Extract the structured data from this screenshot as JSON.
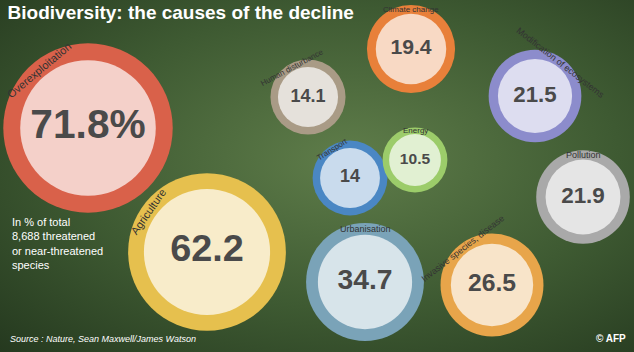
{
  "chart_data": {
    "type": "bubble",
    "title": "Biodiversity: the causes of the decline",
    "categories": [
      "Overexploitation",
      "Agriculture",
      "Human disturbance",
      "Climate change",
      "Transport",
      "Energy",
      "Modification of ecosystems",
      "Pollution",
      "Urbanisation",
      "Invasive species, disease"
    ],
    "values": [
      71.8,
      62.2,
      14.1,
      19.4,
      14,
      10.5,
      21.5,
      21.9,
      34.7,
      26.5
    ],
    "value_labels": [
      "71.8%",
      "62.2",
      "14.1",
      "19.4",
      "14",
      "10.5",
      "21.5",
      "21.9",
      "34.7",
      "26.5"
    ],
    "colors": [
      "#d9614a",
      "#e6c04e",
      "#a99b86",
      "#e8803a",
      "#4a87c4",
      "#9ccc6a",
      "#8c8ccc",
      "#a9a9a9",
      "#7aa3b8",
      "#e8a54a"
    ],
    "data_labels": true,
    "tick_labels": false,
    "annotations": [
      "In % of total\n8,688 threatened\nor near-threatened\nspecies",
      "Source : Nature, Sean Maxwell/James Watson",
      "© AFP"
    ]
  }
}
